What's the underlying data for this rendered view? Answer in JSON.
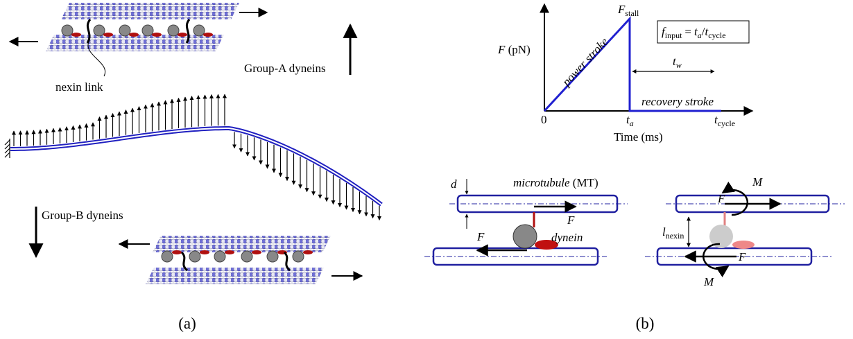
{
  "panel_a": {
    "label": "(a)",
    "nexin_label": "nexin link",
    "group_a": "Group-A dyneins",
    "group_b": "Group-B dyneins"
  },
  "panel_b": {
    "label": "(b)",
    "force_plot": {
      "y_axis": {
        "symbol": "F",
        "unit": "(pN)"
      },
      "x_axis": "Time (ms)",
      "origin": "0",
      "peak": {
        "symbol": "F",
        "sub": "stall"
      },
      "duty": {
        "lhs": {
          "symbol": "f",
          "sub": "input"
        },
        "operator": "=",
        "numerator": {
          "symbol": "t",
          "sub": "a"
        },
        "divider": "/",
        "denominator": {
          "symbol": "t",
          "sub": "cycle"
        }
      },
      "rise_label": "power stroke",
      "wait": {
        "symbol": "t",
        "sub": "w"
      },
      "fall_label": "recovery stroke",
      "t_active": {
        "symbol": "t",
        "sub": "a"
      },
      "t_cycle": {
        "symbol": "t",
        "sub": "cycle"
      }
    },
    "pair_left": {
      "gap": "d",
      "tube": "microtubule",
      "tube_abbr": "(MT)",
      "force_top": "F",
      "force_bottom": "F",
      "motor": "dynein"
    },
    "pair_right": {
      "spacing": {
        "symbol": "l",
        "sub": "nexin"
      },
      "force_top": "F",
      "force_bottom": "F",
      "moment_top": "M",
      "moment_bottom": "M"
    }
  }
}
